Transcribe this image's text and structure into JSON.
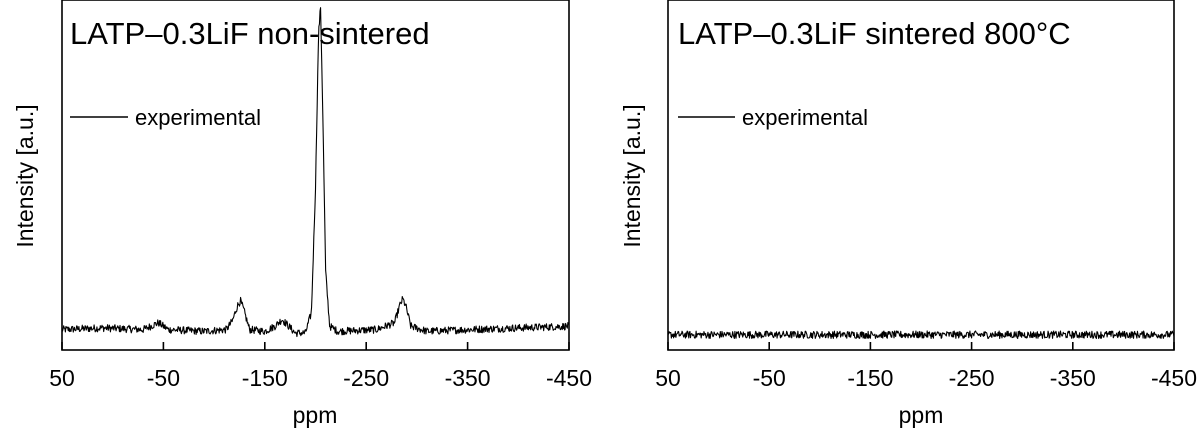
{
  "chart_data": [
    {
      "type": "line",
      "title": "LATP–0.3LiF non-sintered",
      "xlabel": "ppm",
      "ylabel": "Intensity [a.u.]",
      "xlim": [
        50,
        -450
      ],
      "ylim": [
        -0.03,
        1.0
      ],
      "x_ticks": [
        "50",
        "-50",
        "-150",
        "-250",
        "-350",
        "-450"
      ],
      "x_tick_values": [
        50,
        -50,
        -150,
        -250,
        -350,
        -450
      ],
      "y_ticks_labeled": false,
      "legend": {
        "position": "top-left",
        "entries": [
          "experimental"
        ]
      },
      "series": [
        {
          "name": "experimental",
          "x": [
            50,
            10,
            -30,
            -45,
            -55,
            -90,
            -112,
            -118,
            -123,
            -126,
            -129,
            -135,
            -150,
            -160,
            -167,
            -172,
            -180,
            -190,
            -196,
            -200,
            -203,
            -205,
            -207,
            -210,
            -214,
            -222,
            -260,
            -278,
            -283,
            -286,
            -289,
            -294,
            -310,
            -350,
            -400,
            -450
          ],
          "values": [
            0.03,
            0.035,
            0.03,
            0.05,
            0.03,
            0.025,
            0.03,
            0.055,
            0.1,
            0.115,
            0.09,
            0.03,
            0.025,
            0.04,
            0.06,
            0.045,
            0.02,
            0.02,
            0.08,
            0.45,
            0.9,
            0.98,
            0.7,
            0.2,
            0.04,
            0.025,
            0.03,
            0.05,
            0.1,
            0.12,
            0.1,
            0.04,
            0.025,
            0.03,
            0.035,
            0.04
          ]
        }
      ]
    },
    {
      "type": "line",
      "title": "LATP–0.3LiF sintered 800°C",
      "xlabel": "ppm",
      "ylabel": "Intensity [a.u.]",
      "xlim": [
        50,
        -450
      ],
      "ylim": [
        -0.03,
        1.0
      ],
      "x_ticks": [
        "50",
        "-50",
        "-150",
        "-250",
        "-350",
        "-450"
      ],
      "x_tick_values": [
        50,
        -50,
        -150,
        -250,
        -350,
        -450
      ],
      "y_ticks_labeled": false,
      "legend": {
        "position": "top-left",
        "entries": [
          "experimental"
        ]
      },
      "series": [
        {
          "name": "experimental",
          "x": [
            50,
            -450
          ],
          "values": [
            0.015,
            0.015
          ]
        }
      ]
    }
  ]
}
